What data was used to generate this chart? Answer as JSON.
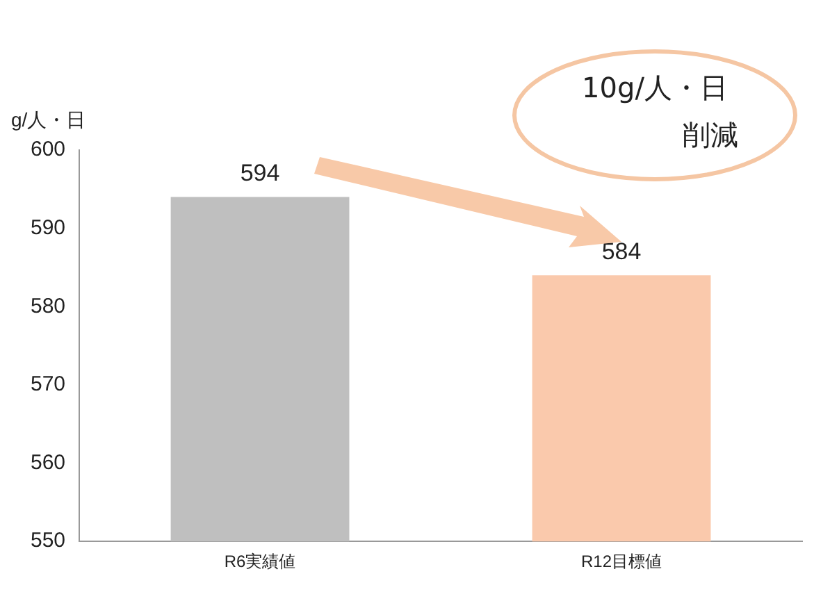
{
  "chart_data": {
    "type": "bar",
    "ylabel": "g/人・日",
    "categories": [
      "R6実績値",
      "R12目標値"
    ],
    "values": [
      594,
      584
    ],
    "colors": [
      "#bfbfbf",
      "#fac9ac"
    ],
    "ylim": [
      550,
      600
    ],
    "yticks": [
      550,
      560,
      570,
      580,
      590,
      600
    ],
    "grid": false,
    "legend": false,
    "data_labels": true,
    "annotations": [
      "10g/人・日",
      "削減"
    ]
  }
}
